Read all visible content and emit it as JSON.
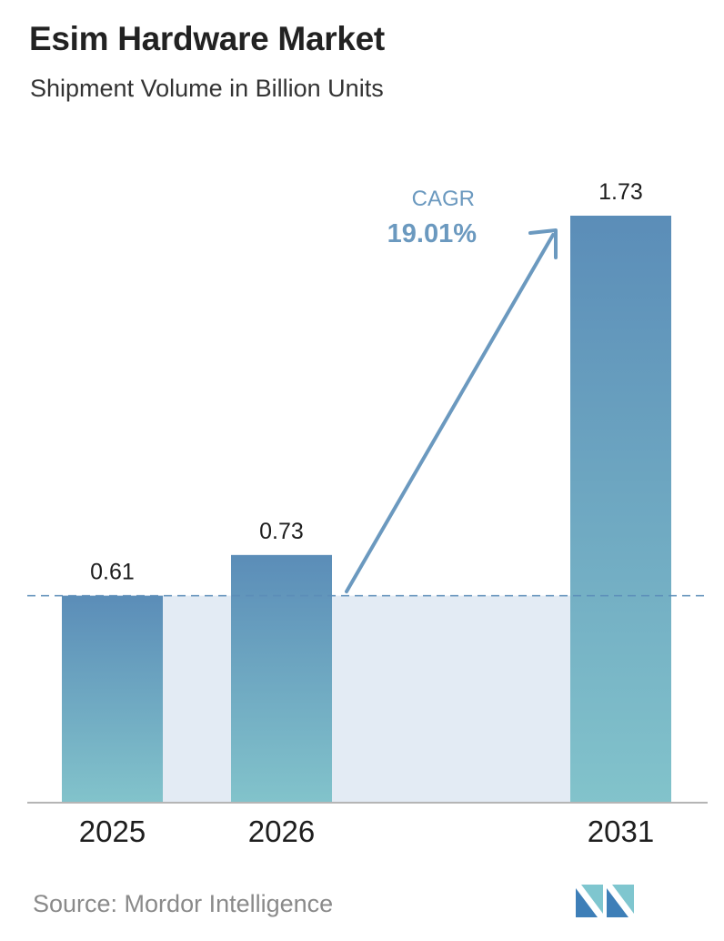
{
  "header": {
    "title": "Esim Hardware Market",
    "subtitle": "Shipment Volume in Billion Units"
  },
  "chart_data": {
    "type": "bar",
    "categories": [
      "2025",
      "2026",
      "2031"
    ],
    "values": [
      0.61,
      0.73,
      1.73
    ],
    "value_labels": [
      "0.61",
      "0.73",
      "1.73"
    ],
    "title": "Esim Hardware Market",
    "subtitle": "Shipment Volume in Billion Units",
    "xlabel": "",
    "ylabel": "",
    "ylim": [
      0,
      1.73
    ],
    "grid": false,
    "legend": "none",
    "reference_line": 0.61,
    "annotation": {
      "label": "CAGR",
      "value": "19.01%"
    },
    "colors": {
      "bar_top": "#5b8db8",
      "bar_bottom": "#82c3cb",
      "band": "#e3ebf4",
      "arrow": "#6b99bf",
      "dashed": "#5b8db8"
    }
  },
  "footer": {
    "source": "Source: Mordor Intelligence",
    "logo_icon": "mordor-intelligence-logo-icon"
  }
}
